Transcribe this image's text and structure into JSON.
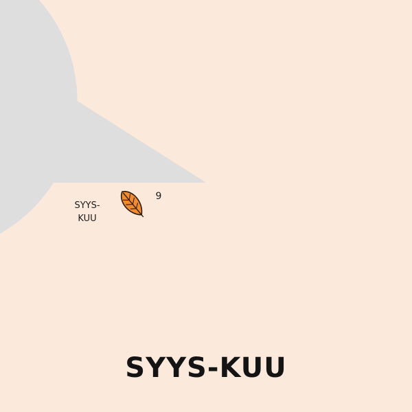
{
  "chart_data": {
    "type": "pie",
    "title": "SYYS-KUU",
    "slices": [
      {
        "label": "SYYS-\nKUU",
        "value": 9,
        "value_label": "9",
        "color": "#fdcd84",
        "icon": "leaf-icon",
        "highlighted": true
      },
      {
        "label": "",
        "value": 91,
        "color": "#dedede",
        "highlighted": false
      }
    ]
  },
  "colors": {
    "background": "#fbeadc",
    "highlight": "#fdcd84",
    "rest": "#dedede",
    "leaf": "#f28a2e"
  }
}
